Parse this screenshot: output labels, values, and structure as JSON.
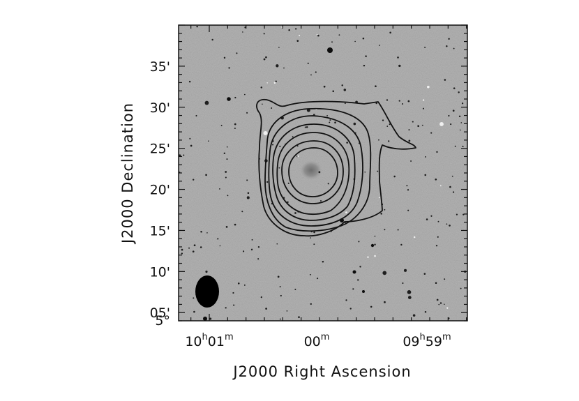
{
  "chart_data": {
    "type": "contour",
    "xlabel": "J2000 Right Ascension",
    "ylabel": "J2000 Declination",
    "x_ticks": [
      {
        "h": "10",
        "hu": "h",
        "m": "01",
        "mu": "m"
      },
      {
        "h": "",
        "hu": "",
        "m": "00",
        "mu": "m"
      },
      {
        "h": "09",
        "hu": "h",
        "m": "59",
        "mu": "m"
      }
    ],
    "y_ticks": [
      {
        "label": "5°",
        "arcmin": 5
      },
      {
        "label": "05'",
        "arcmin": 5
      },
      {
        "label": "10'",
        "arcmin": 10
      },
      {
        "label": "15'",
        "arcmin": 15
      },
      {
        "label": "20'",
        "arcmin": 20
      },
      {
        "label": "25'",
        "arcmin": 25
      },
      {
        "label": "30'",
        "arcmin": 30
      },
      {
        "label": "35'",
        "arcmin": 35
      }
    ],
    "dec_range_arcmin": [
      4,
      40
    ],
    "ra_range_min": [
      -1.43,
      1.43
    ],
    "contour_levels": 7,
    "beam_shape": "ellipse",
    "background": "optical sky image (grayscale)",
    "contour_color": "#111111",
    "grid": false
  }
}
